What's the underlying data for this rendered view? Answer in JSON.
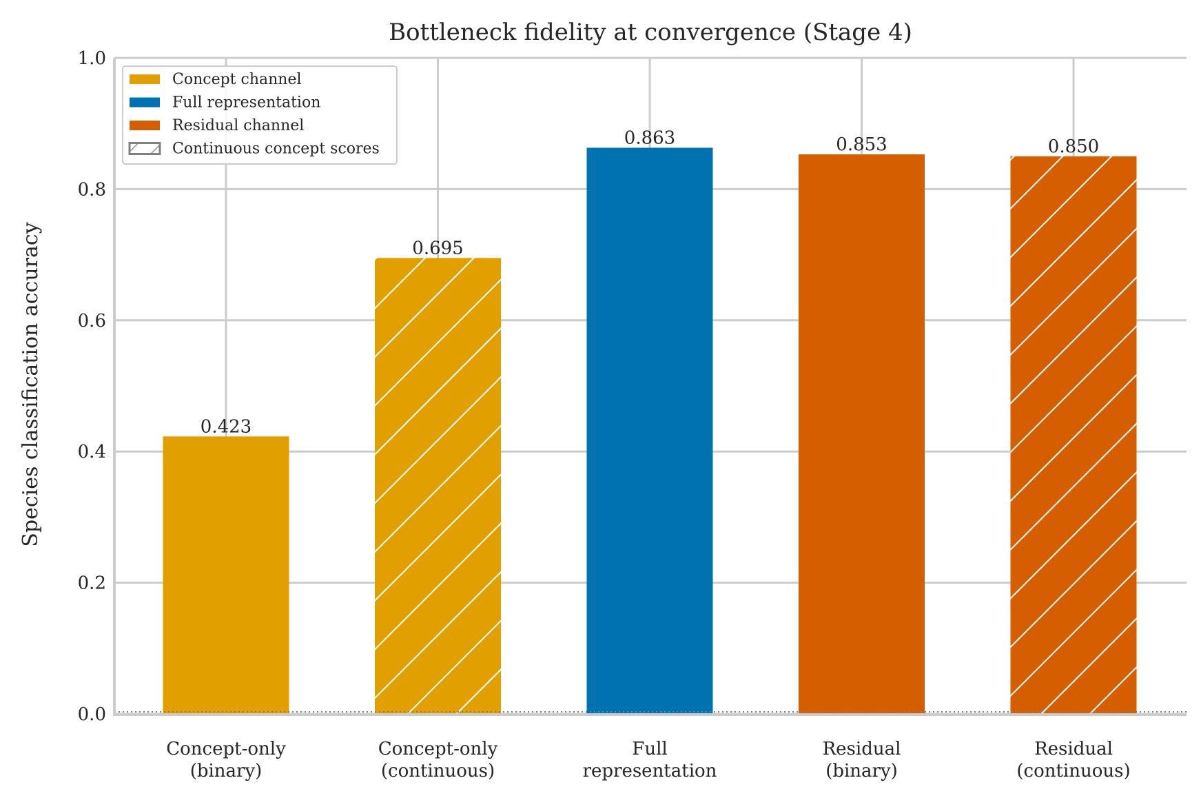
{
  "chart_data": {
    "type": "bar",
    "title": "Bottleneck fidelity at convergence (Stage 4)",
    "xlabel": "",
    "ylabel": "Species classification accuracy",
    "ylim": [
      0,
      1.0
    ],
    "yticks": [
      "0.0",
      "0.2",
      "0.4",
      "0.6",
      "0.8",
      "1.0"
    ],
    "grid": true,
    "legend_position": "top-left",
    "baseline": 0.0,
    "categories": [
      [
        "Concept-only",
        "(binary)"
      ],
      [
        "Concept-only",
        "(continuous)"
      ],
      [
        "Full",
        "representation"
      ],
      [
        "Residual",
        "(binary)"
      ],
      [
        "Residual",
        "(continuous)"
      ]
    ],
    "values": [
      0.423,
      0.695,
      0.863,
      0.853,
      0.85
    ],
    "value_labels": [
      "0.423",
      "0.695",
      "0.863",
      "0.853",
      "0.850"
    ],
    "bar_colors": [
      "#E1A000",
      "#E1A000",
      "#0072B2",
      "#D55E00",
      "#D55E00"
    ],
    "hatched": [
      false,
      true,
      false,
      false,
      true
    ],
    "legend": [
      {
        "label": "Concept channel",
        "color": "#E1A000",
        "hatched": false
      },
      {
        "label": "Full representation",
        "color": "#0072B2",
        "hatched": false
      },
      {
        "label": "Residual channel",
        "color": "#D55E00",
        "hatched": false
      },
      {
        "label": "Continuous concept scores",
        "color": "#ffffff",
        "hatched": true
      }
    ]
  }
}
